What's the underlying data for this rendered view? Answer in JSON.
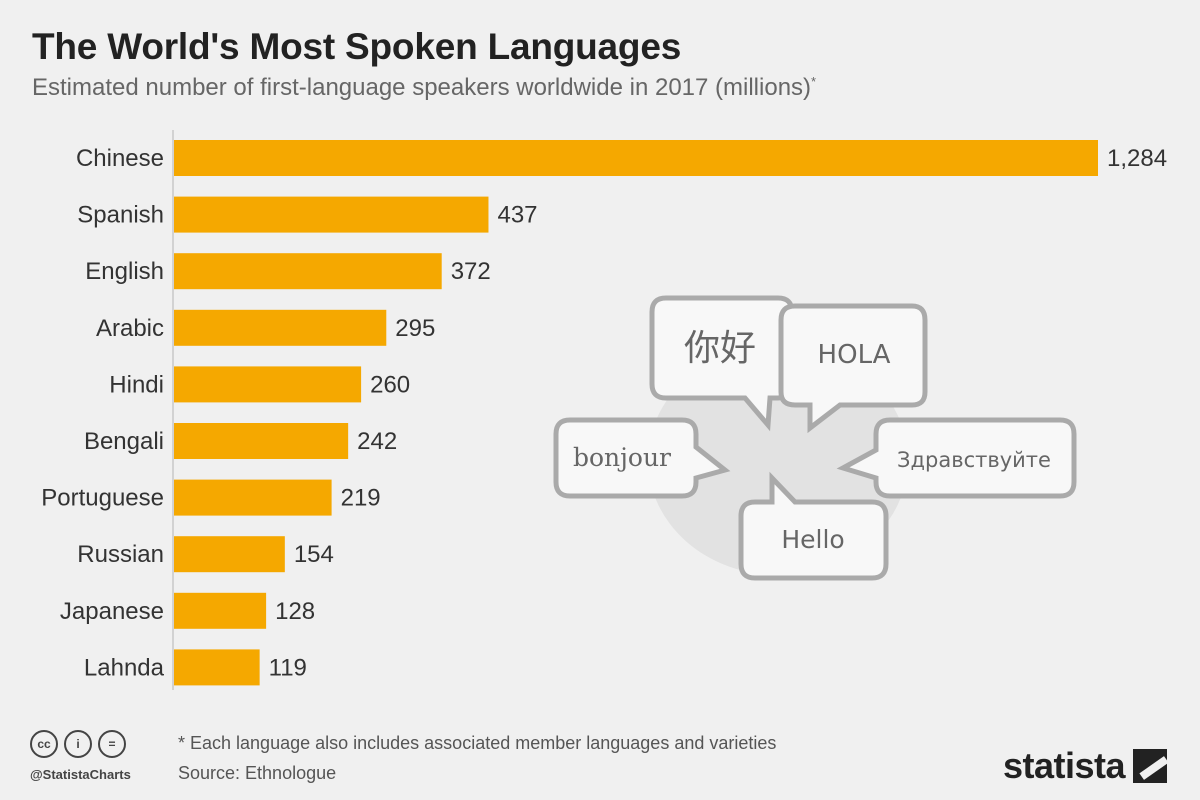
{
  "header": {
    "title": "The World's Most Spoken Languages",
    "subtitle": "Estimated number of first-language speakers worldwide in 2017 (millions)",
    "subtitle_marker": "*"
  },
  "chart_data": {
    "type": "bar",
    "orientation": "horizontal",
    "categories": [
      "Chinese",
      "Spanish",
      "English",
      "Arabic",
      "Hindi",
      "Bengali",
      "Portuguese",
      "Russian",
      "Japanese",
      "Lahnda"
    ],
    "values": [
      1284,
      437,
      372,
      295,
      260,
      242,
      219,
      154,
      128,
      119
    ],
    "value_labels": [
      "1,284",
      "437",
      "372",
      "295",
      "260",
      "242",
      "219",
      "154",
      "128",
      "119"
    ],
    "title": "The World's Most Spoken Languages",
    "subtitle": "Estimated number of first-language speakers worldwide in 2017 (millions)*",
    "xlim": [
      0,
      1284
    ],
    "bar_color": "#f5a800",
    "grid": false
  },
  "illustration": {
    "bubbles": [
      "你好",
      "HOLA",
      "bonjour",
      "Здравствуйте",
      "Hello"
    ],
    "bubble_color": "#aaaaaa"
  },
  "footer": {
    "note": "* Each language also includes associated member languages and varieties",
    "source": "Source: Ethnologue",
    "handle": "@StatistaCharts",
    "brand": "statista",
    "cc_icons": [
      "cc-icon",
      "by-person-icon",
      "nd-equals-icon"
    ],
    "cc_glyphs": [
      "cc",
      "i",
      "="
    ]
  },
  "colors": {
    "background": "#f0f0f0",
    "accent": "#f5a800"
  }
}
